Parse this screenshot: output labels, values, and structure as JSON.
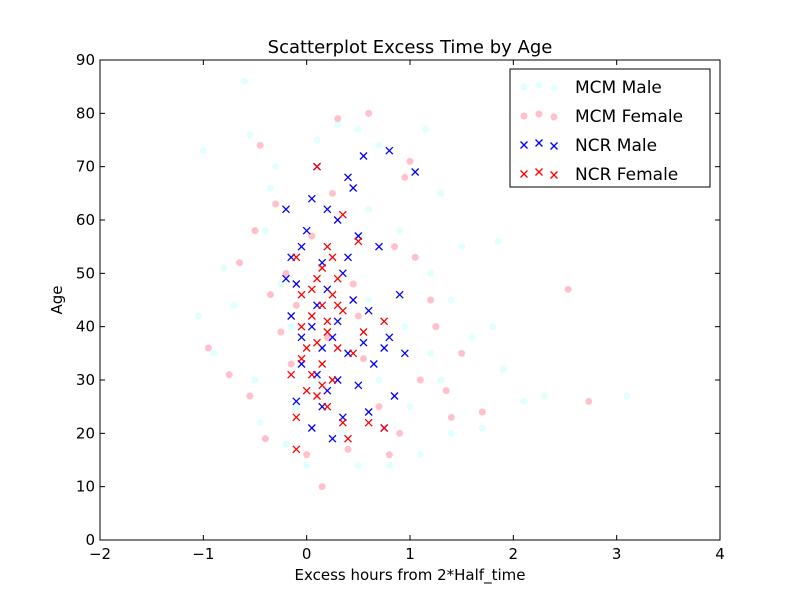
{
  "chart_data": {
    "type": "scatter",
    "title": "Scatterplot Excess Time by Age",
    "xlabel": "Excess hours from 2*Half_time",
    "ylabel": "Age",
    "xlim": [
      -2,
      4
    ],
    "ylim": [
      0,
      90
    ],
    "xticks": [
      "−2",
      "−1",
      "0",
      "1",
      "2",
      "3",
      "4"
    ],
    "yticks": [
      "0",
      "10",
      "20",
      "30",
      "40",
      "50",
      "60",
      "70",
      "80",
      "90"
    ],
    "grid": false,
    "legend_position": "top-right",
    "series": [
      {
        "name": "MCM Male",
        "marker": "circle",
        "color": "#e0ffff",
        "points": [
          [
            -1.0,
            73
          ],
          [
            -0.6,
            86
          ],
          [
            -0.55,
            76
          ],
          [
            -0.8,
            51
          ],
          [
            -0.7,
            44
          ],
          [
            -1.05,
            42
          ],
          [
            -0.9,
            35
          ],
          [
            -0.4,
            58
          ],
          [
            -0.35,
            66
          ],
          [
            -0.3,
            70
          ],
          [
            0.1,
            75
          ],
          [
            0.3,
            78
          ],
          [
            0.5,
            77
          ],
          [
            0.7,
            74
          ],
          [
            1.15,
            77
          ],
          [
            1.3,
            65
          ],
          [
            1.5,
            55
          ],
          [
            1.85,
            56
          ],
          [
            2.1,
            26
          ],
          [
            3.1,
            27
          ],
          [
            2.3,
            27
          ],
          [
            1.8,
            40
          ],
          [
            1.9,
            32
          ],
          [
            1.6,
            38
          ],
          [
            1.4,
            45
          ],
          [
            -0.5,
            30
          ],
          [
            -0.45,
            22
          ],
          [
            -0.2,
            18
          ],
          [
            0.0,
            14
          ],
          [
            0.5,
            14
          ],
          [
            0.8,
            14
          ],
          [
            1.1,
            16
          ],
          [
            1.4,
            20
          ],
          [
            1.7,
            21
          ],
          [
            0.6,
            62
          ],
          [
            0.9,
            58
          ],
          [
            1.2,
            50
          ],
          [
            -0.25,
            48
          ],
          [
            -0.15,
            40
          ],
          [
            0.4,
            35
          ],
          [
            0.7,
            30
          ],
          [
            1.0,
            25
          ],
          [
            1.2,
            35
          ],
          [
            0.2,
            55
          ],
          [
            0.1,
            30
          ],
          [
            0.6,
            45
          ],
          [
            0.95,
            40
          ],
          [
            1.3,
            30
          ],
          [
            0.35,
            20
          ],
          [
            -0.1,
            25
          ]
        ]
      },
      {
        "name": "MCM Female",
        "marker": "circle",
        "color": "#ffc0cb",
        "points": [
          [
            0.3,
            79
          ],
          [
            0.6,
            80
          ],
          [
            -0.95,
            36
          ],
          [
            -0.75,
            31
          ],
          [
            -0.65,
            52
          ],
          [
            -0.5,
            58
          ],
          [
            -0.55,
            27
          ],
          [
            -0.4,
            19
          ],
          [
            -0.3,
            63
          ],
          [
            -0.2,
            50
          ],
          [
            0.15,
            10
          ],
          [
            0.0,
            16
          ],
          [
            0.4,
            17
          ],
          [
            0.8,
            16
          ],
          [
            1.0,
            71
          ],
          [
            0.95,
            68
          ],
          [
            1.05,
            53
          ],
          [
            1.2,
            45
          ],
          [
            1.4,
            23
          ],
          [
            1.5,
            35
          ],
          [
            2.53,
            47
          ],
          [
            2.73,
            26
          ],
          [
            1.7,
            24
          ],
          [
            -0.1,
            44
          ],
          [
            -0.15,
            33
          ],
          [
            0.2,
            38
          ],
          [
            0.5,
            42
          ],
          [
            0.7,
            25
          ],
          [
            0.9,
            20
          ],
          [
            1.1,
            30
          ],
          [
            -0.35,
            46
          ],
          [
            0.05,
            57
          ],
          [
            0.25,
            65
          ],
          [
            0.55,
            34
          ],
          [
            1.25,
            40
          ],
          [
            -0.45,
            74
          ],
          [
            -0.25,
            39
          ],
          [
            1.35,
            28
          ],
          [
            0.45,
            48
          ],
          [
            0.85,
            55
          ]
        ]
      },
      {
        "name": "NCR Male",
        "marker": "x",
        "color": "#0000ff",
        "points": [
          [
            0.8,
            73
          ],
          [
            0.55,
            72
          ],
          [
            1.05,
            69
          ],
          [
            0.1,
            70
          ],
          [
            0.4,
            68
          ],
          [
            0.05,
            64
          ],
          [
            -0.2,
            62
          ],
          [
            0.3,
            60
          ],
          [
            0.5,
            57
          ],
          [
            -0.05,
            55
          ],
          [
            0.15,
            52
          ],
          [
            0.35,
            50
          ],
          [
            -0.1,
            48
          ],
          [
            0.2,
            47
          ],
          [
            0.45,
            45
          ],
          [
            0.6,
            43
          ],
          [
            -0.15,
            42
          ],
          [
            0.05,
            40
          ],
          [
            0.25,
            38
          ],
          [
            0.55,
            37
          ],
          [
            0.75,
            36
          ],
          [
            0.95,
            35
          ],
          [
            -0.05,
            33
          ],
          [
            0.1,
            31
          ],
          [
            0.3,
            30
          ],
          [
            0.5,
            29
          ],
          [
            0.85,
            27
          ],
          [
            -0.1,
            26
          ],
          [
            0.15,
            25
          ],
          [
            0.35,
            23
          ],
          [
            0.05,
            21
          ],
          [
            0.25,
            19
          ],
          [
            0.75,
            21
          ],
          [
            0.9,
            46
          ],
          [
            0.7,
            55
          ],
          [
            0.4,
            53
          ],
          [
            0.0,
            58
          ],
          [
            0.2,
            62
          ],
          [
            0.45,
            66
          ],
          [
            0.1,
            44
          ],
          [
            -0.2,
            49
          ],
          [
            0.3,
            41
          ],
          [
            0.65,
            33
          ],
          [
            -0.05,
            38
          ],
          [
            0.2,
            28
          ],
          [
            0.4,
            35
          ],
          [
            0.6,
            24
          ],
          [
            0.15,
            36
          ],
          [
            0.8,
            38
          ],
          [
            -0.15,
            53
          ]
        ]
      },
      {
        "name": "NCR Female",
        "marker": "x",
        "color": "#ff0000",
        "points": [
          [
            0.1,
            70
          ],
          [
            0.35,
            61
          ],
          [
            0.5,
            56
          ],
          [
            0.2,
            55
          ],
          [
            -0.1,
            53
          ],
          [
            0.15,
            51
          ],
          [
            0.3,
            49
          ],
          [
            0.05,
            47
          ],
          [
            0.25,
            46
          ],
          [
            0.15,
            44
          ],
          [
            0.35,
            43
          ],
          [
            0.05,
            42
          ],
          [
            -0.05,
            40
          ],
          [
            0.2,
            39
          ],
          [
            0.1,
            37
          ],
          [
            0.3,
            36
          ],
          [
            -0.05,
            34
          ],
          [
            0.15,
            33
          ],
          [
            0.05,
            31
          ],
          [
            0.25,
            30
          ],
          [
            0.0,
            28
          ],
          [
            0.1,
            27
          ],
          [
            -0.1,
            23
          ],
          [
            0.2,
            25
          ],
          [
            0.35,
            22
          ],
          [
            0.6,
            22
          ],
          [
            0.75,
            21
          ],
          [
            -0.1,
            17
          ],
          [
            0.4,
            19
          ],
          [
            0.75,
            41
          ],
          [
            0.45,
            35
          ],
          [
            0.55,
            39
          ],
          [
            -0.05,
            46
          ],
          [
            0.2,
            41
          ],
          [
            0.1,
            49
          ],
          [
            0.25,
            53
          ],
          [
            0.3,
            44
          ],
          [
            0.0,
            36
          ],
          [
            0.15,
            29
          ],
          [
            -0.15,
            31
          ]
        ]
      }
    ]
  }
}
